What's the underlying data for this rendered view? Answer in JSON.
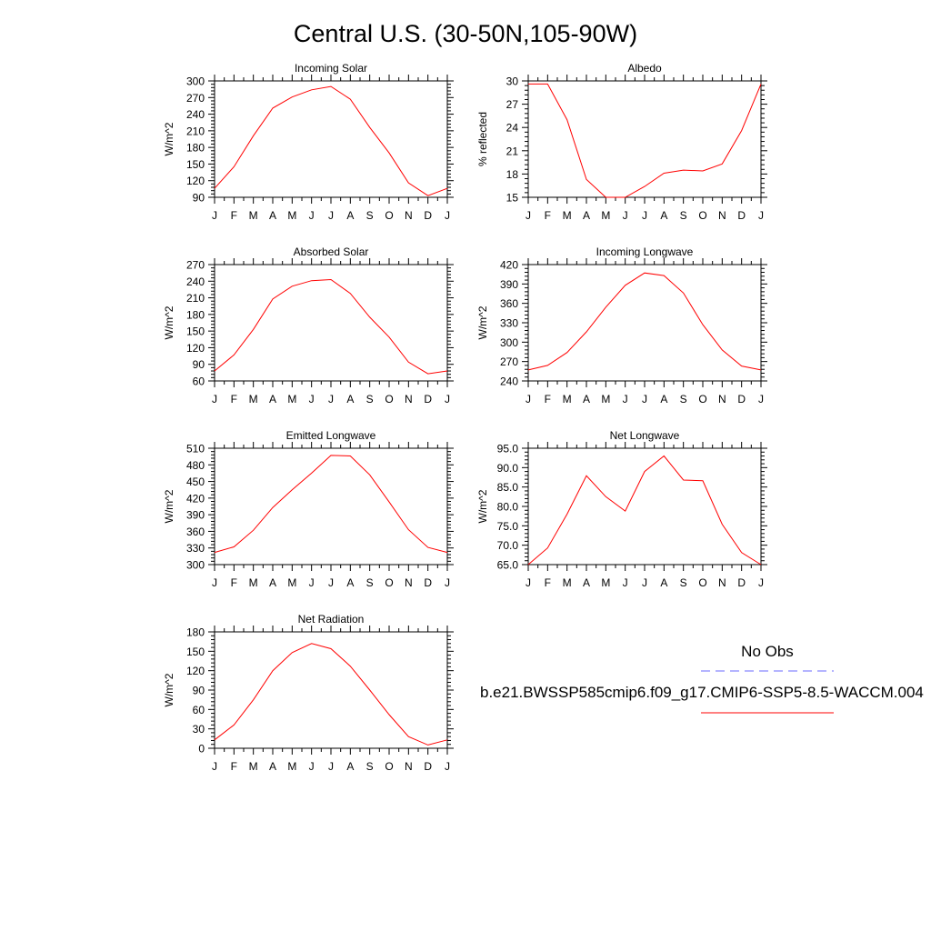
{
  "title": "Central U.S. (30-50N,105-90W)",
  "line_color": "#ff0000",
  "obs_color": "#6a6aff",
  "legend": {
    "obs_label": "No Obs",
    "model_label": "b.e21.BWSSP585cmip6.f09_g17.CMIP6-SSP5-8.5-WACCM.004"
  },
  "chart_data": [
    {
      "type": "line",
      "title": "Incoming Solar",
      "ylabel": "W/m^2",
      "categories": [
        "J",
        "F",
        "M",
        "A",
        "M",
        "J",
        "J",
        "A",
        "S",
        "O",
        "N",
        "D",
        "J"
      ],
      "ylim": [
        90,
        300
      ],
      "yticks": [
        "90",
        "120",
        "150",
        "180",
        "210",
        "240",
        "270",
        "300"
      ],
      "values": [
        106,
        145,
        201,
        251,
        271,
        284,
        290,
        267,
        216,
        170,
        116,
        93,
        106
      ]
    },
    {
      "type": "line",
      "title": "Albedo",
      "ylabel": "% reflected",
      "categories": [
        "J",
        "F",
        "M",
        "A",
        "M",
        "J",
        "J",
        "A",
        "S",
        "O",
        "N",
        "D",
        "J"
      ],
      "ylim": [
        15,
        30
      ],
      "yticks": [
        "15",
        "18",
        "21",
        "24",
        "27",
        "30"
      ],
      "values": [
        29.6,
        29.6,
        25.0,
        17.3,
        15.0,
        15.0,
        16.4,
        18.1,
        18.5,
        18.4,
        19.3,
        23.6,
        29.6
      ]
    },
    {
      "type": "line",
      "title": "Absorbed Solar",
      "ylabel": "W/m^2",
      "categories": [
        "J",
        "F",
        "M",
        "A",
        "M",
        "J",
        "J",
        "A",
        "S",
        "O",
        "N",
        "D",
        "J"
      ],
      "ylim": [
        60,
        270
      ],
      "yticks": [
        "60",
        "90",
        "120",
        "150",
        "180",
        "210",
        "240",
        "270"
      ],
      "values": [
        78,
        107,
        153,
        208,
        231,
        241,
        243,
        218,
        175,
        139,
        94,
        73,
        78
      ]
    },
    {
      "type": "line",
      "title": "Incoming Longwave",
      "ylabel": "W/m^2",
      "categories": [
        "J",
        "F",
        "M",
        "A",
        "M",
        "J",
        "J",
        "A",
        "S",
        "O",
        "N",
        "D",
        "J"
      ],
      "ylim": [
        240,
        420
      ],
      "yticks": [
        "240",
        "270",
        "300",
        "330",
        "360",
        "390",
        "420"
      ],
      "values": [
        257,
        264,
        284,
        316,
        354,
        388,
        407,
        403,
        376,
        327,
        288,
        263,
        257
      ]
    },
    {
      "type": "line",
      "title": "Emitted Longwave",
      "ylabel": "W/m^2",
      "categories": [
        "J",
        "F",
        "M",
        "A",
        "M",
        "J",
        "J",
        "A",
        "S",
        "O",
        "N",
        "D",
        "J"
      ],
      "ylim": [
        300,
        510
      ],
      "yticks": [
        "300",
        "330",
        "360",
        "390",
        "420",
        "450",
        "480",
        "510"
      ],
      "values": [
        322,
        332,
        362,
        403,
        435,
        465,
        497,
        496,
        462,
        413,
        363,
        331,
        322
      ]
    },
    {
      "type": "line",
      "title": "Net Longwave",
      "ylabel": "W/m^2",
      "categories": [
        "J",
        "F",
        "M",
        "A",
        "M",
        "J",
        "J",
        "A",
        "S",
        "O",
        "N",
        "D",
        "J"
      ],
      "ylim": [
        65,
        95
      ],
      "yticks": [
        "65.0",
        "70.0",
        "75.0",
        "80.0",
        "85.0",
        "90.0",
        "95.0"
      ],
      "values": [
        65.0,
        69.3,
        78.0,
        87.9,
        82.5,
        78.8,
        89.0,
        93.0,
        86.8,
        86.6,
        75.4,
        68.1,
        65.0
      ]
    },
    {
      "type": "line",
      "title": "Net Radiation",
      "ylabel": "W/m^2",
      "categories": [
        "J",
        "F",
        "M",
        "A",
        "M",
        "J",
        "J",
        "A",
        "S",
        "O",
        "N",
        "D",
        "J"
      ],
      "ylim": [
        0,
        180
      ],
      "yticks": [
        "0",
        "30",
        "60",
        "90",
        "120",
        "150",
        "180"
      ],
      "values": [
        13,
        36,
        75,
        120,
        148,
        162,
        154,
        127,
        90,
        52,
        18,
        5,
        13
      ]
    }
  ]
}
